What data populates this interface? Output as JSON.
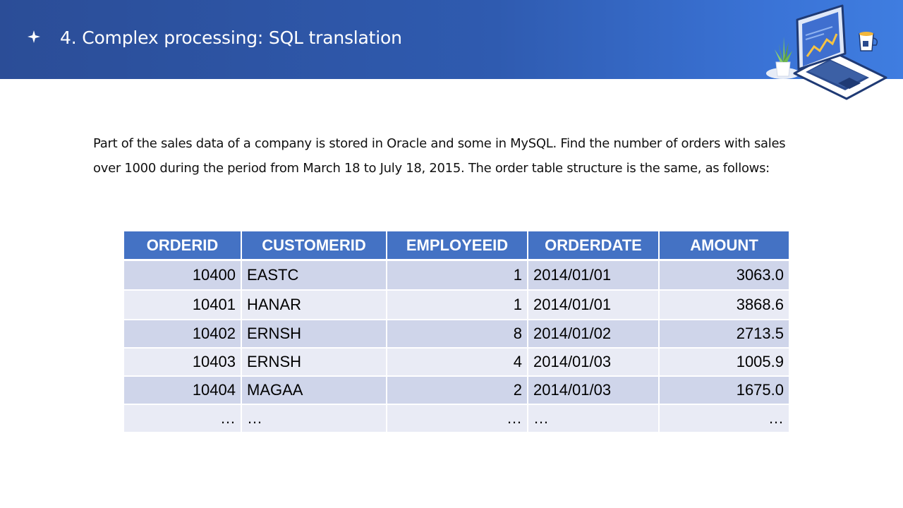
{
  "header": {
    "bullet_icon": "four-point-star-icon",
    "title": "4. Complex processing: SQL translation",
    "illustration": "laptop-analytics-illustration"
  },
  "intro": {
    "line1": "Part of the sales data of a company is stored in Oracle and some in MySQL. Find the number of orders with sales",
    "line2": "over 1000 during the period from March 18 to July 18, 2015. The order table structure is the same, as follows:"
  },
  "table": {
    "columns": [
      "ORDERID",
      "CUSTOMERID",
      "EMPLOYEEID",
      "ORDERDATE",
      "AMOUNT"
    ],
    "rows": [
      [
        "10400",
        "EASTC",
        "1",
        "2014/01/01",
        "3063.0"
      ],
      [
        "10401",
        "HANAR",
        "1",
        "2014/01/01",
        "3868.6"
      ],
      [
        "10402",
        "ERNSH",
        "8",
        "2014/01/02",
        "2713.5"
      ],
      [
        "10403",
        "ERNSH",
        "4",
        "2014/01/03",
        "1005.9"
      ],
      [
        "10404",
        "MAGAA",
        "2",
        "2014/01/03",
        "1675.0"
      ],
      [
        "…",
        "…",
        "…",
        "…",
        "…"
      ]
    ]
  },
  "colors": {
    "banner": "#2f5bb0",
    "table_header": "#4472c4",
    "row_dark": "#cfd5ea",
    "row_light": "#e9ebf5"
  }
}
